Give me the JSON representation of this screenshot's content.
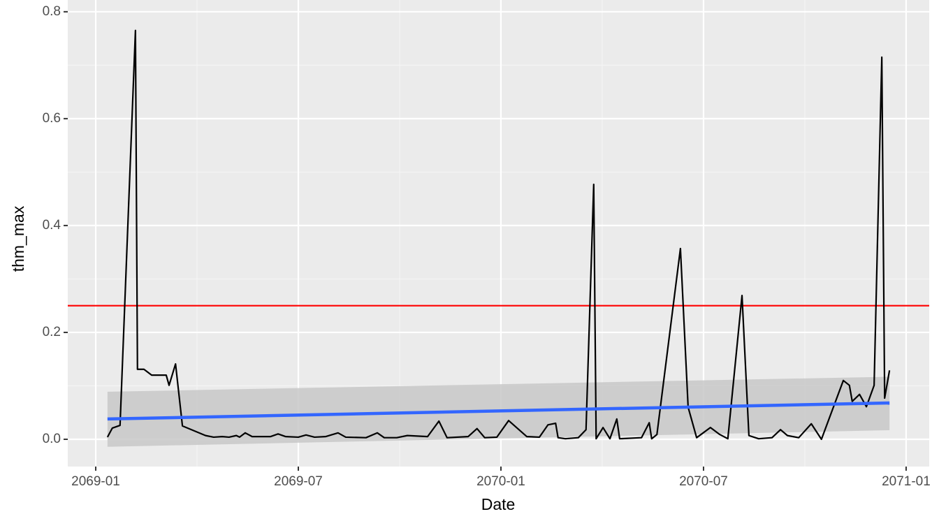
{
  "chart_data": {
    "type": "line",
    "x_label": "Date",
    "y_label": "thm_max",
    "xlim": [
      2068.931,
      2071.057
    ],
    "ylim": [
      -0.051,
      0.822
    ],
    "xticks": [
      {
        "value": 2069.0,
        "label": "2069-01"
      },
      {
        "value": 2069.5,
        "label": "2069-07"
      },
      {
        "value": 2070.0,
        "label": "2070-01"
      },
      {
        "value": 2070.5,
        "label": "2070-07"
      },
      {
        "value": 2071.0,
        "label": "2071-01"
      }
    ],
    "yticks": [
      {
        "value": 0,
        "label": "0.0"
      },
      0.2,
      0.4,
      0.6,
      0.8
    ],
    "x_minor": [
      2069.25,
      2069.75,
      2070.25,
      2070.75
    ],
    "y_minor": [
      0.1,
      0.3,
      0.5,
      0.7
    ],
    "grid": true,
    "line": {
      "color": "#000000",
      "x": [
        2069.029,
        2069.041,
        2069.06,
        2069.098,
        2069.103,
        2069.119,
        2069.138,
        2069.174,
        2069.181,
        2069.197,
        2069.214,
        2069.271,
        2069.291,
        2069.312,
        2069.329,
        2069.347,
        2069.355,
        2069.369,
        2069.386,
        2069.431,
        2069.45,
        2069.469,
        2069.5,
        2069.519,
        2069.54,
        2069.567,
        2069.598,
        2069.617,
        2069.667,
        2069.695,
        2069.712,
        2069.743,
        2069.769,
        2069.819,
        2069.847,
        2069.867,
        2069.919,
        2069.941,
        2069.96,
        2069.99,
        2070.019,
        2070.064,
        2070.095,
        2070.116,
        2070.135,
        2070.141,
        2070.159,
        2070.191,
        2070.21,
        2070.229,
        2070.235,
        2070.252,
        2070.269,
        2070.286,
        2070.293,
        2070.347,
        2070.366,
        2070.372,
        2070.385,
        2070.443,
        2070.462,
        2070.483,
        2070.517,
        2070.54,
        2070.56,
        2070.595,
        2070.612,
        2070.636,
        2070.669,
        2070.69,
        2070.707,
        2070.735,
        2070.766,
        2070.791,
        2070.845,
        2070.86,
        2070.867,
        2070.885,
        2070.902,
        2070.921,
        2070.94,
        2070.947,
        2070.959
      ],
      "values": [
        0.004,
        0.021,
        0.026,
        0.765,
        0.131,
        0.131,
        0.12,
        0.12,
        0.101,
        0.141,
        0.025,
        0.007,
        0.004,
        0.005,
        0.004,
        0.007,
        0.004,
        0.012,
        0.005,
        0.005,
        0.01,
        0.005,
        0.004,
        0.008,
        0.004,
        0.005,
        0.012,
        0.004,
        0.003,
        0.012,
        0.003,
        0.003,
        0.007,
        0.005,
        0.034,
        0.003,
        0.005,
        0.02,
        0.003,
        0.004,
        0.035,
        0.005,
        0.004,
        0.027,
        0.03,
        0.003,
        0.001,
        0.003,
        0.018,
        0.477,
        0.001,
        0.022,
        0.001,
        0.038,
        0.001,
        0.003,
        0.031,
        0.001,
        0.009,
        0.357,
        0.06,
        0.003,
        0.022,
        0.009,
        0.001,
        0.269,
        0.007,
        0.001,
        0.003,
        0.018,
        0.007,
        0.003,
        0.029,
        0.0,
        0.11,
        0.101,
        0.071,
        0.084,
        0.061,
        0.101,
        0.715,
        0.077,
        0.129
      ]
    },
    "smooth": {
      "color": "#3366ff",
      "band_color": "#c8c8c8",
      "x": [
        2069.029,
        2070.959
      ],
      "values": [
        0.038,
        0.068
      ],
      "lower": [
        -0.014,
        0.017
      ],
      "upper": [
        0.089,
        0.117
      ]
    },
    "hline": {
      "value": 0.25,
      "color": "#ff0000"
    }
  }
}
